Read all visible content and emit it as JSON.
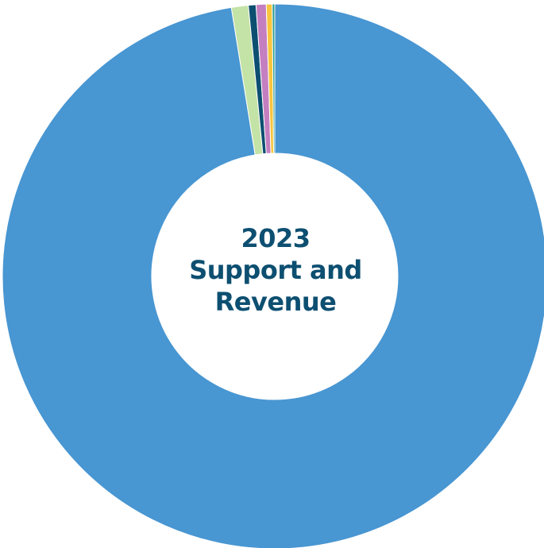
{
  "chart_data": {
    "type": "pie",
    "variant": "donut",
    "title_lines": [
      "2023",
      "Support and",
      "Revenue"
    ],
    "unit": "percent",
    "slices": [
      {
        "value": 97.45,
        "color": "#4896d2"
      },
      {
        "value": 1.0,
        "color": "#c4e3a6"
      },
      {
        "value": 0.45,
        "color": "#0d4f71"
      },
      {
        "value": 0.6,
        "color": "#c47fc0"
      },
      {
        "value": 0.35,
        "color": "#f8c53d"
      },
      {
        "value": 0.15,
        "color": "#2c9e8e"
      }
    ],
    "legend": "none"
  },
  "colors": {
    "title": "#0d4f71",
    "background": "#ffffff"
  }
}
